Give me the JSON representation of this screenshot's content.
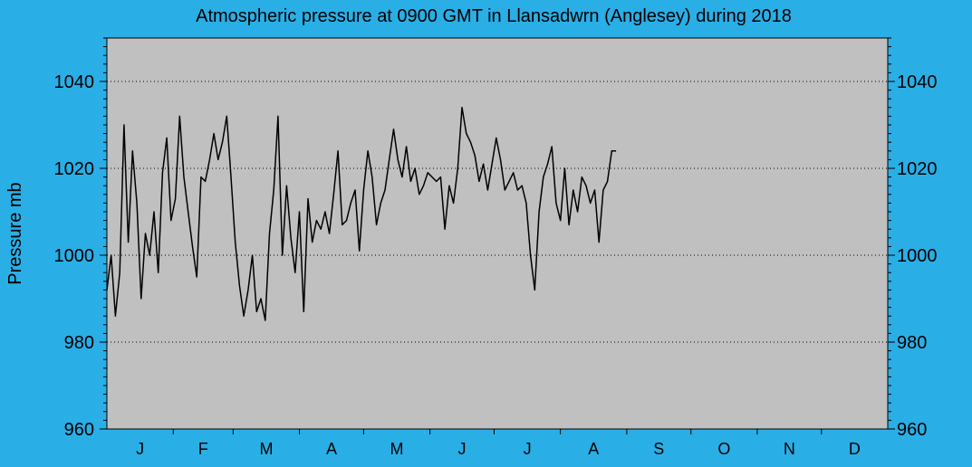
{
  "chart_data": {
    "type": "line",
    "title": "Atmospheric pressure at 0900 GMT in Llansadwrn (Anglesey) during 2018",
    "xlabel": "",
    "ylabel": "Pressure mb",
    "ylim": [
      960,
      1050
    ],
    "yticks": [
      960,
      980,
      1000,
      1020,
      1040
    ],
    "y_minor_step": 2,
    "grid": "horizontal-dotted",
    "legend": "none",
    "months": [
      "J",
      "F",
      "M",
      "A",
      "M",
      "J",
      "J",
      "A",
      "S",
      "O",
      "N",
      "D"
    ],
    "month_days": [
      31,
      28,
      31,
      30,
      31,
      30,
      31,
      31,
      30,
      31,
      30,
      31
    ],
    "line_color": "#000000",
    "plot_bg": "#c0c0c0",
    "page_bg": "#2aaee6",
    "series": [
      {
        "x_day": [
          0,
          2,
          4,
          6,
          8,
          10,
          12,
          14,
          16,
          18,
          20,
          22,
          24,
          26,
          28,
          30,
          32,
          34,
          36,
          38,
          40,
          42,
          44,
          46,
          48,
          50,
          52,
          54,
          56,
          58,
          60,
          62,
          64,
          66,
          68,
          70,
          72,
          74,
          76,
          78,
          80,
          82,
          84,
          86,
          88,
          90,
          92,
          94,
          96,
          98,
          100,
          102,
          104,
          106,
          108,
          110,
          112,
          114,
          116,
          118,
          120,
          122,
          124,
          126,
          128,
          130,
          132,
          134,
          136,
          138,
          140,
          142,
          144,
          146,
          148,
          150,
          152,
          154,
          156,
          158,
          160,
          162,
          164,
          166,
          168,
          170,
          172,
          174,
          176,
          178,
          180,
          182,
          184,
          186,
          188,
          190,
          192,
          194,
          196,
          198,
          200,
          202,
          204,
          206,
          208,
          210,
          212,
          214,
          216,
          218,
          220,
          222,
          224,
          226,
          228,
          230,
          232,
          234,
          236,
          238
        ],
        "values": [
          992,
          1000,
          986,
          996,
          1030,
          1003,
          1024,
          1012,
          990,
          1005,
          1000,
          1010,
          996,
          1019,
          1027,
          1008,
          1013,
          1032,
          1018,
          1010,
          1002,
          995,
          1018,
          1017,
          1022,
          1028,
          1022,
          1026,
          1032,
          1018,
          1003,
          993,
          986,
          992,
          1000,
          987,
          990,
          985,
          1005,
          1015,
          1032,
          1000,
          1016,
          1004,
          996,
          1010,
          987,
          1013,
          1003,
          1008,
          1006,
          1010,
          1005,
          1014,
          1024,
          1007,
          1008,
          1012,
          1015,
          1001,
          1015,
          1024,
          1018,
          1007,
          1012,
          1015,
          1022,
          1029,
          1022,
          1018,
          1025,
          1017,
          1020,
          1014,
          1016,
          1019,
          1018,
          1017,
          1018,
          1006,
          1016,
          1012,
          1020,
          1034,
          1028,
          1026,
          1023,
          1017,
          1021,
          1015,
          1021,
          1027,
          1022,
          1015,
          1017,
          1019,
          1015,
          1016,
          1012,
          1000,
          992,
          1010,
          1018,
          1021,
          1025,
          1012,
          1008,
          1020,
          1007,
          1015,
          1010,
          1018,
          1016,
          1012,
          1015,
          1003,
          1015,
          1017,
          1024,
          1024
        ]
      }
    ]
  }
}
